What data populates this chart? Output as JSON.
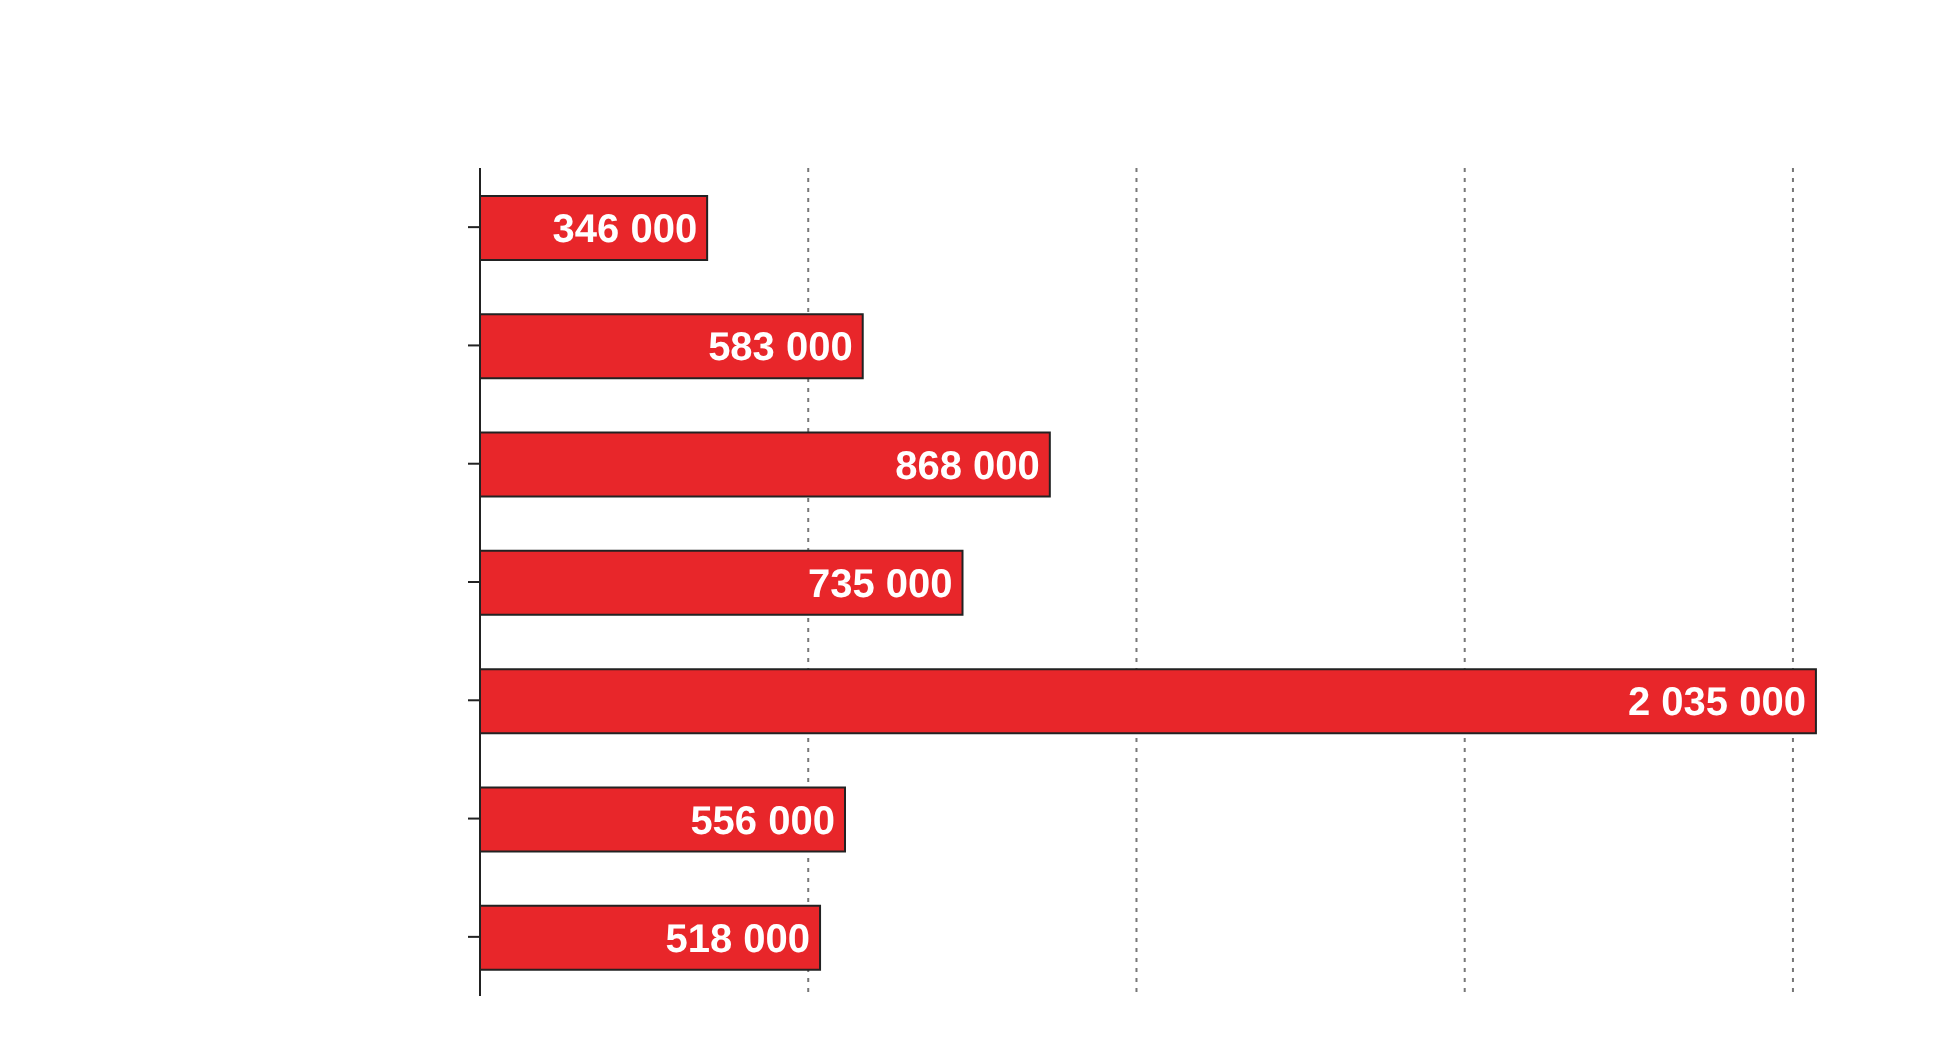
{
  "chart_data": {
    "type": "bar",
    "orientation": "horizontal",
    "categories": [
      null,
      null,
      null,
      null,
      null,
      null,
      null
    ],
    "values": [
      346000,
      583000,
      868000,
      735000,
      2035000,
      556000,
      518000
    ],
    "value_labels": [
      "346 000",
      "583 000",
      "868 000",
      "735 000",
      "2 035 000",
      "556 000",
      "518 000"
    ],
    "color": "#e8262a",
    "xticks": [
      {
        "value": 0,
        "label": null
      },
      {
        "value": 500000,
        "label": null
      },
      {
        "value": 1000000,
        "label": null
      },
      {
        "value": 1500000,
        "label": null
      },
      {
        "value": 2000000,
        "label": null
      }
    ],
    "grid": "x"
  }
}
